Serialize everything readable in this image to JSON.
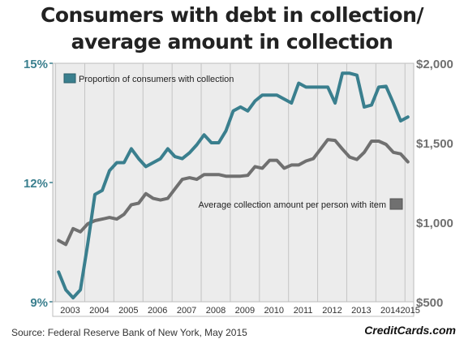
{
  "title_line1": "Consumers with debt in collection/",
  "title_line2": "average amount in collection",
  "source": "Source: Federal Reserve Bank of New York, May 2015",
  "brand": "CreditCards.com",
  "colors": {
    "teal": "#3a7f8e",
    "gray": "#707070",
    "plot_bg": "#ececec",
    "tick_text_left": "#3a7f8e",
    "tick_text_right": "#707070"
  },
  "chart_data": {
    "type": "line",
    "x_range": [
      2002.8,
      2015.2
    ],
    "x_ticks": [
      "2003",
      "2004",
      "2005",
      "2006",
      "2007",
      "2008",
      "2009",
      "2010",
      "2011",
      "2012",
      "2013",
      "2014",
      "2015"
    ],
    "y_left": {
      "ticks": [
        "9%",
        "12%",
        "15%"
      ],
      "range": [
        9,
        15
      ]
    },
    "y_right": {
      "ticks": [
        "$500",
        "$1,000",
        "$1,500",
        "$2,000"
      ],
      "range": [
        500,
        2000
      ]
    },
    "series": [
      {
        "name": "Proportion of consumers with collection",
        "axis": "left",
        "color": "#3a7f8e",
        "x": [
          2003.0,
          2003.25,
          2003.5,
          2003.75,
          2004.0,
          2004.25,
          2004.5,
          2004.75,
          2005.0,
          2005.25,
          2005.5,
          2005.75,
          2006.0,
          2006.25,
          2006.5,
          2006.75,
          2007.0,
          2007.25,
          2007.5,
          2007.75,
          2008.0,
          2008.25,
          2008.5,
          2008.75,
          2009.0,
          2009.25,
          2009.5,
          2009.75,
          2010.0,
          2010.25,
          2010.5,
          2010.75,
          2011.0,
          2011.25,
          2011.5,
          2011.75,
          2012.0,
          2012.25,
          2012.5,
          2012.75,
          2013.0,
          2013.25,
          2013.5,
          2013.75,
          2014.0,
          2014.25,
          2014.5,
          2014.75,
          2015.0
        ],
        "values": [
          9.75,
          9.3,
          9.1,
          9.3,
          10.45,
          11.7,
          11.8,
          12.3,
          12.5,
          12.5,
          12.85,
          12.6,
          12.4,
          12.5,
          12.6,
          12.85,
          12.65,
          12.6,
          12.75,
          12.95,
          13.2,
          13.0,
          13.0,
          13.3,
          13.8,
          13.9,
          13.8,
          14.05,
          14.2,
          14.2,
          14.2,
          14.1,
          14.0,
          14.5,
          14.4,
          14.4,
          14.4,
          14.4,
          14.0,
          14.75,
          14.75,
          14.7,
          13.9,
          13.95,
          14.4,
          14.42,
          14.0,
          13.55,
          13.65
        ]
      },
      {
        "name": "Average collection amount per person with item",
        "axis": "right",
        "color": "#707070",
        "x": [
          2003.0,
          2003.25,
          2003.5,
          2003.75,
          2004.0,
          2004.25,
          2004.5,
          2004.75,
          2005.0,
          2005.25,
          2005.5,
          2005.75,
          2006.0,
          2006.25,
          2006.5,
          2006.75,
          2007.0,
          2007.25,
          2007.5,
          2007.75,
          2008.0,
          2008.25,
          2008.5,
          2008.75,
          2009.0,
          2009.25,
          2009.5,
          2009.75,
          2010.0,
          2010.25,
          2010.5,
          2010.75,
          2011.0,
          2011.25,
          2011.5,
          2011.75,
          2012.0,
          2012.25,
          2012.5,
          2012.75,
          2013.0,
          2013.25,
          2013.5,
          2013.75,
          2014.0,
          2014.25,
          2014.5,
          2014.75,
          2015.0
        ],
        "values": [
          885,
          860,
          960,
          940,
          990,
          1010,
          1020,
          1030,
          1020,
          1050,
          1110,
          1120,
          1180,
          1150,
          1140,
          1150,
          1210,
          1270,
          1280,
          1270,
          1300,
          1300,
          1300,
          1290,
          1290,
          1290,
          1295,
          1350,
          1340,
          1390,
          1390,
          1340,
          1360,
          1360,
          1385,
          1400,
          1460,
          1520,
          1515,
          1460,
          1410,
          1395,
          1440,
          1510,
          1510,
          1490,
          1440,
          1430,
          1380
        ]
      }
    ],
    "legend": [
      {
        "label": "Proportion of consumers with collection",
        "placement": "top-left"
      },
      {
        "label": "Average collection amount per person with item",
        "placement": "middle-right"
      }
    ]
  }
}
